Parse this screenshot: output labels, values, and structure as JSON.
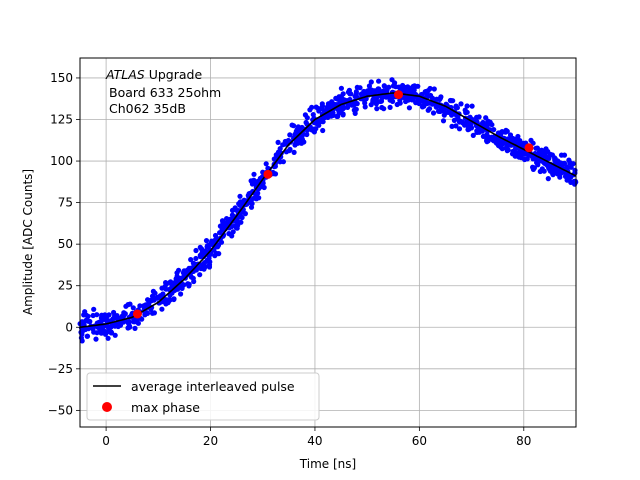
{
  "chart_data": {
    "type": "scatter",
    "xlabel": "Time [ns]",
    "ylabel": "Amplitude [ADC Counts]",
    "xlim": [
      -5,
      90
    ],
    "ylim": [
      -60,
      162
    ],
    "xticks": [
      0,
      20,
      40,
      60,
      80
    ],
    "yticks": [
      -50,
      -25,
      0,
      25,
      50,
      75,
      100,
      125,
      150
    ],
    "grid": true,
    "annotation": {
      "line1_italic": "ATLAS",
      "line1_rest": " Upgrade",
      "line2": "Board 633 25ohm",
      "line3": "Ch062 35dB"
    },
    "legend": {
      "placement": "lower-left",
      "entries": [
        {
          "label": "average interleaved pulse",
          "kind": "line",
          "color": "#000000"
        },
        {
          "label": "max phase",
          "kind": "marker",
          "color": "#ff0000"
        }
      ]
    },
    "series": [
      {
        "role": "samples",
        "color": "#0000ff",
        "noise": 4,
        "points_per_ns": 12
      },
      {
        "role": "average interleaved pulse",
        "color": "#000000",
        "x": [
          -5,
          0,
          5,
          10,
          15,
          20,
          25,
          30,
          35,
          40,
          45,
          50,
          55,
          60,
          65,
          70,
          75,
          80,
          85,
          90
        ],
        "y": [
          0,
          2,
          6,
          15,
          29,
          46,
          67,
          89,
          110,
          125,
          134,
          139,
          141,
          139,
          133,
          124,
          115,
          107,
          99,
          91
        ]
      },
      {
        "role": "max phase",
        "color": "#ff0000",
        "x": [
          6,
          31,
          56,
          81
        ],
        "y": [
          8,
          92,
          140,
          108
        ]
      }
    ]
  }
}
